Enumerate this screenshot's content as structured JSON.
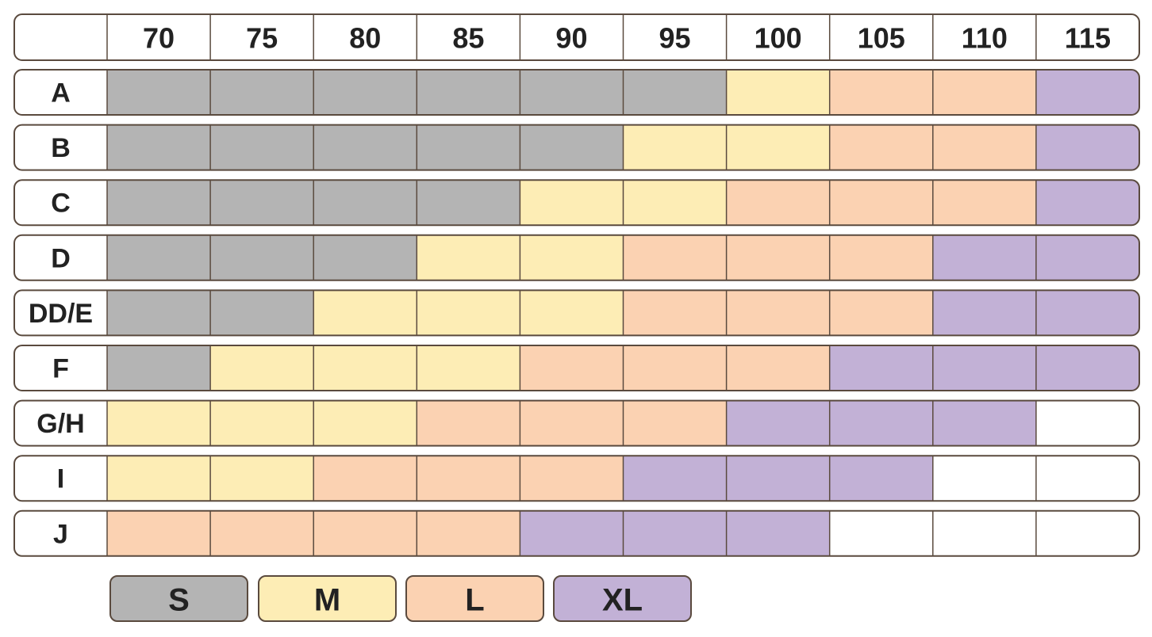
{
  "chart_data": {
    "type": "table",
    "columns": [
      "70",
      "75",
      "80",
      "85",
      "90",
      "95",
      "100",
      "105",
      "110",
      "115"
    ],
    "rows": [
      {
        "label": "A",
        "sizes": [
          "S",
          "S",
          "S",
          "S",
          "S",
          "S",
          "M",
          "L",
          "L",
          "XL"
        ]
      },
      {
        "label": "B",
        "sizes": [
          "S",
          "S",
          "S",
          "S",
          "S",
          "M",
          "M",
          "L",
          "L",
          "XL"
        ]
      },
      {
        "label": "C",
        "sizes": [
          "S",
          "S",
          "S",
          "S",
          "M",
          "M",
          "L",
          "L",
          "L",
          "XL"
        ]
      },
      {
        "label": "D",
        "sizes": [
          "S",
          "S",
          "S",
          "M",
          "M",
          "L",
          "L",
          "L",
          "XL",
          "XL"
        ]
      },
      {
        "label": "DD/E",
        "sizes": [
          "S",
          "S",
          "M",
          "M",
          "M",
          "L",
          "L",
          "L",
          "XL",
          "XL"
        ]
      },
      {
        "label": "F",
        "sizes": [
          "S",
          "M",
          "M",
          "M",
          "L",
          "L",
          "L",
          "XL",
          "XL",
          "XL"
        ]
      },
      {
        "label": "G/H",
        "sizes": [
          "M",
          "M",
          "M",
          "L",
          "L",
          "L",
          "XL",
          "XL",
          "XL",
          ""
        ]
      },
      {
        "label": "I",
        "sizes": [
          "M",
          "M",
          "L",
          "L",
          "L",
          "XL",
          "XL",
          "XL",
          "",
          ""
        ]
      },
      {
        "label": "J",
        "sizes": [
          "L",
          "L",
          "L",
          "L",
          "XL",
          "XL",
          "XL",
          "",
          "",
          ""
        ]
      }
    ],
    "legend": [
      {
        "label": "S",
        "color": "#b4b4b4"
      },
      {
        "label": "M",
        "color": "#fdedb5"
      },
      {
        "label": "L",
        "color": "#fbd2b2"
      },
      {
        "label": "XL",
        "color": "#c2b1d6"
      }
    ],
    "empty_color": "#ffffff",
    "border_color": "#5a4a3e"
  }
}
